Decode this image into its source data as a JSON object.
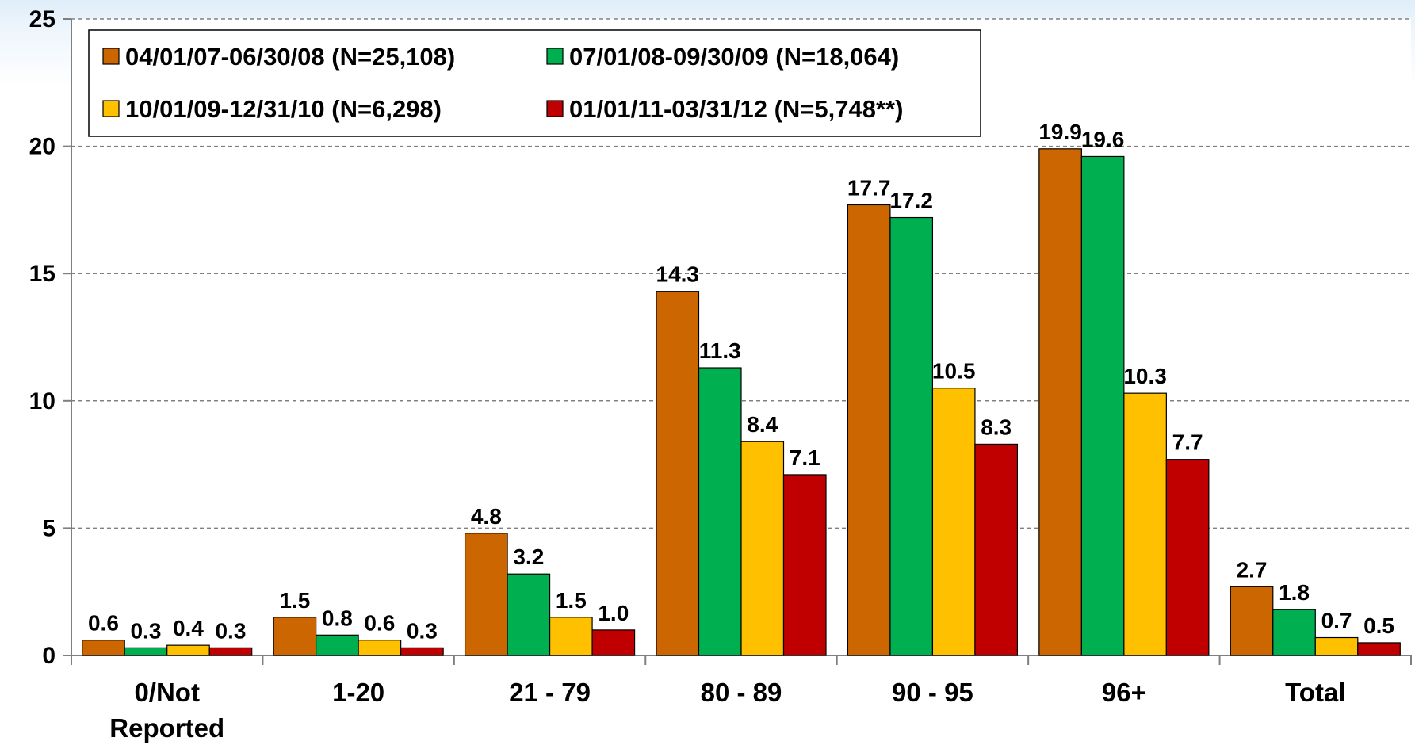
{
  "chart_data": {
    "type": "bar",
    "categories": [
      [
        "0/Not",
        "Reported"
      ],
      [
        "1-20"
      ],
      [
        "21 - 79"
      ],
      [
        "80 - 89"
      ],
      [
        "90 - 95"
      ],
      [
        "96+"
      ],
      [
        "Total"
      ]
    ],
    "series": [
      {
        "name": "04/01/07-06/30/08 (N=25,108)",
        "color": "#cc6600",
        "values": [
          0.6,
          1.5,
          4.8,
          14.3,
          17.7,
          19.9,
          2.7
        ],
        "labels": [
          "0.6",
          "1.5",
          "4.8",
          "14.3",
          "17.7",
          "19.9",
          "2.7"
        ]
      },
      {
        "name": "07/01/08-09/30/09 (N=18,064)",
        "color": "#00b050",
        "values": [
          0.3,
          0.8,
          3.2,
          11.3,
          17.2,
          19.6,
          1.8
        ],
        "labels": [
          "0.3",
          "0.8",
          "3.2",
          "11.3",
          "17.2",
          "19.6",
          "1.8"
        ]
      },
      {
        "name": "10/01/09-12/31/10 (N=6,298)",
        "color": "#ffc000",
        "values": [
          0.4,
          0.6,
          1.5,
          8.4,
          10.5,
          10.3,
          0.7
        ],
        "labels": [
          "0.4",
          "0.6",
          "1.5",
          "8.4",
          "10.5",
          "10.3",
          "0.7"
        ]
      },
      {
        "name": "01/01/11-03/31/12 (N=5,748**)",
        "color": "#c00000",
        "values": [
          0.3,
          0.3,
          1.0,
          7.1,
          8.3,
          7.7,
          0.5
        ],
        "labels": [
          "0.3",
          "0.3",
          "1.0",
          "7.1",
          "8.3",
          "7.7",
          "0.5"
        ]
      }
    ],
    "ylim": [
      0,
      25
    ],
    "yticks": [
      "0",
      "5",
      "10",
      "15",
      "20",
      "25"
    ],
    "ytick_values": [
      0,
      5,
      10,
      15,
      20,
      25
    ],
    "grid": true,
    "legend_position": "top-left",
    "title": "",
    "xlabel": "",
    "ylabel": ""
  }
}
